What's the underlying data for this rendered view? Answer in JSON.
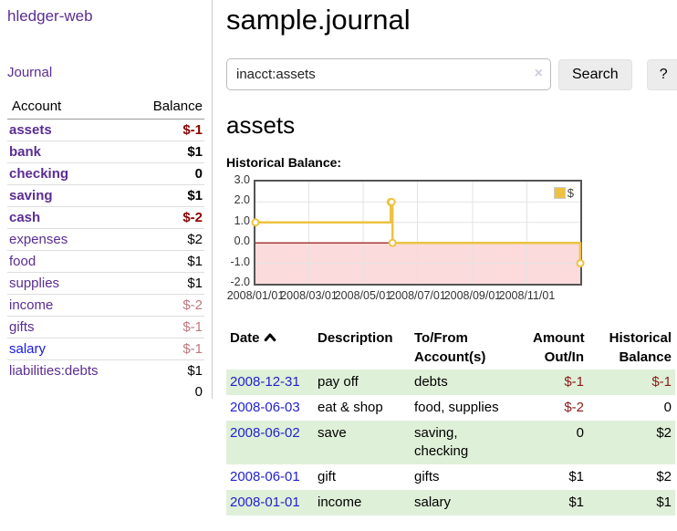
{
  "app": {
    "brand": "hledger-web",
    "nav_journal": "Journal"
  },
  "header": {
    "title": "sample.journal"
  },
  "search": {
    "value": "inacct:assets",
    "clear_icon": "×",
    "search_button": "Search",
    "help_button": "?"
  },
  "account_page": {
    "heading": "assets",
    "chart_label": "Historical Balance:"
  },
  "sidebar_accounts": {
    "headers": {
      "account": "Account",
      "balance": "Balance"
    },
    "rows": [
      {
        "name": "assets",
        "balance": "$-1",
        "level": 1,
        "bold": true,
        "neg": "strong"
      },
      {
        "name": "bank",
        "balance": "$1",
        "level": 2,
        "bold": true
      },
      {
        "name": "checking",
        "balance": "0",
        "level": 3,
        "bold": true
      },
      {
        "name": "saving",
        "balance": "$1",
        "level": 3,
        "bold": true
      },
      {
        "name": "cash",
        "balance": "$-2",
        "level": 2,
        "bold": true,
        "neg": "strong"
      },
      {
        "name": "expenses",
        "balance": "$2",
        "level": 1
      },
      {
        "name": "food",
        "balance": "$1",
        "level": 2
      },
      {
        "name": "supplies",
        "balance": "$1",
        "level": 2
      },
      {
        "name": "income",
        "balance": "$-2",
        "level": 1,
        "neg": "dim"
      },
      {
        "name": "gifts",
        "balance": "$-1",
        "level": 2,
        "neg": "dim"
      },
      {
        "name": "salary",
        "balance": "$-1",
        "level": 2,
        "neg": "dim",
        "unvisited": true
      },
      {
        "name": "liabilities:debts",
        "balance": "$1",
        "level": 1
      }
    ],
    "total": "0"
  },
  "chart_data": {
    "type": "line",
    "title": "Historical Balance:",
    "step": true,
    "legend": "$",
    "legend_position": "top-right",
    "grid": true,
    "ylim": [
      -2,
      3
    ],
    "y_ticks": [
      "3.0",
      "2.0",
      "1.0",
      "0.0",
      "-1.0",
      "-2.0"
    ],
    "y_tick_values": [
      3,
      2,
      1,
      0,
      -1,
      -2
    ],
    "x_ticks": [
      "2008/01/01",
      "2008/03/01",
      "2008/05/01",
      "2008/07/01",
      "2008/09/01",
      "2008/11/01"
    ],
    "x_range": [
      "2008/01/01",
      "2008/12/31"
    ],
    "series": [
      {
        "name": "$",
        "color": "#edc240",
        "points": [
          [
            "2008/01/01",
            1
          ],
          [
            "2008/06/01",
            2
          ],
          [
            "2008/06/02",
            2
          ],
          [
            "2008/06/03",
            0
          ],
          [
            "2008/12/31",
            -1
          ]
        ]
      }
    ],
    "negative_region_fill": "#fbdbdb",
    "zero_line_color": "#8b0000"
  },
  "register_table": {
    "headers": [
      {
        "line1": "Date",
        "sort": "asc",
        "align": "left"
      },
      {
        "line1": "Description",
        "align": "left"
      },
      {
        "line1": "To/From",
        "line2": "Account(s)",
        "align": "left"
      },
      {
        "line1": "Amount",
        "line2": "Out/In",
        "align": "right"
      },
      {
        "line1": "Historical",
        "line2": "Balance",
        "align": "right"
      }
    ],
    "rows": [
      {
        "date": "2008-12-31",
        "description": "pay off",
        "accounts": "debts",
        "amount": "$-1",
        "balance": "$-1",
        "amount_neg": true,
        "balance_neg": true
      },
      {
        "date": "2008-06-03",
        "description": "eat & shop",
        "accounts": "food, supplies",
        "amount": "$-2",
        "balance": "0",
        "amount_neg": true
      },
      {
        "date": "2008-06-02",
        "description": "save",
        "accounts": "saving,\nchecking",
        "amount": "0",
        "balance": "$2"
      },
      {
        "date": "2008-06-01",
        "description": "gift",
        "accounts": "gifts",
        "amount": "$1",
        "balance": "$2"
      },
      {
        "date": "2008-01-01",
        "description": "income",
        "accounts": "salary",
        "amount": "$1",
        "balance": "$1"
      }
    ]
  },
  "colors": {
    "link_purple": "#5b2d91",
    "link_blue": "#1717e6",
    "negative_strong": "#8b0000",
    "negative_dim": "#bf7880",
    "stripe_green": "#dff0d8",
    "series_gold": "#edc240"
  }
}
